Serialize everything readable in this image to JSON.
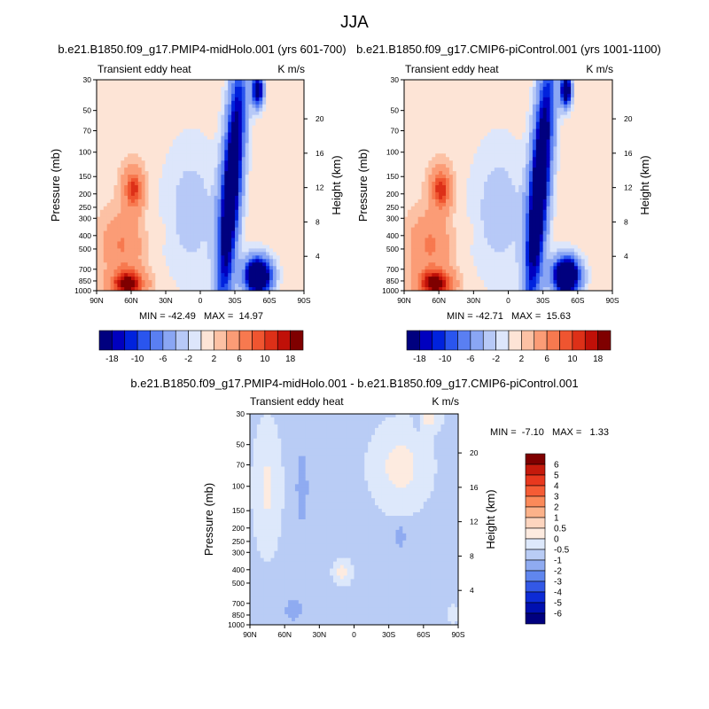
{
  "figure_title": "JJA",
  "colorbar_main": {
    "labels": [
      "-18",
      "-10",
      "-6",
      "-2",
      "2",
      "6",
      "10",
      "18"
    ],
    "colors": [
      "#00007f",
      "#0000bf",
      "#0022dd",
      "#2a55ee",
      "#5a7ff2",
      "#8aa6f4",
      "#b7c9f7",
      "#dde6fb",
      "#fde4d6",
      "#fcc1a4",
      "#fb9c76",
      "#f7794f",
      "#ef5530",
      "#dd3018",
      "#c01008",
      "#7f0000"
    ]
  },
  "colorbar_diff": {
    "labels": [
      "6",
      "5",
      "4",
      "3",
      "2",
      "1",
      "0.5",
      "0",
      "-0.5",
      "-1",
      "-2",
      "-3",
      "-4",
      "-5",
      "-6"
    ],
    "colors": [
      "#7f0000",
      "#c51a0c",
      "#e8381e",
      "#f55c35",
      "#fb8a5a",
      "#fcb28a",
      "#fdd5bf",
      "#fdebe0",
      "#dde8fb",
      "#b9ccf5",
      "#8fabf1",
      "#6086ee",
      "#3358e6",
      "#0d2bd6",
      "#0010b0",
      "#00007f"
    ]
  },
  "chart_data": [
    {
      "type": "heatmap",
      "title": "b.e21.B1850.f09_g17.PMIP4-midHolo.001 (yrs 601-700)",
      "subtitle": "Transient eddy heat",
      "units": "K m/s",
      "ylabel": "Pressure (mb)",
      "ylabel_right": "Height (km)",
      "stats": "MIN = -42.49   MAX =  14.97",
      "x_ticks": [
        "90N",
        "60N",
        "30N",
        "0",
        "30S",
        "60S",
        "90S"
      ],
      "y_ticks": [
        "30",
        "50",
        "70",
        "100",
        "150",
        "200",
        "250",
        "300",
        "400",
        "500",
        "700",
        "850",
        "1000"
      ],
      "height_ticks": [
        "20",
        "16",
        "12",
        "8",
        "4"
      ],
      "min": -42.49,
      "max": 14.97,
      "scale": 1.0
    },
    {
      "type": "heatmap",
      "title": "b.e21.B1850.f09_g17.CMIP6-piControl.001 (yrs 1001-1100)",
      "subtitle": "Transient eddy heat",
      "units": "K m/s",
      "ylabel": "Pressure (mb)",
      "ylabel_right": "Height (km)",
      "stats": "MIN = -42.71   MAX =  15.63",
      "x_ticks": [
        "90N",
        "60N",
        "30N",
        "0",
        "30S",
        "60S",
        "90S"
      ],
      "y_ticks": [
        "30",
        "50",
        "70",
        "100",
        "150",
        "200",
        "250",
        "300",
        "400",
        "500",
        "700",
        "850",
        "1000"
      ],
      "height_ticks": [
        "20",
        "16",
        "12",
        "8",
        "4"
      ],
      "min": -42.71,
      "max": 15.63,
      "scale": 1.04
    },
    {
      "type": "heatmap",
      "title": "b.e21.B1850.f09_g17.PMIP4-midHolo.001 - b.e21.B1850.f09_g17.CMIP6-piControl.001",
      "subtitle": "Transient eddy heat",
      "units": "K m/s",
      "ylabel": "Pressure (mb)",
      "ylabel_right": "Height (km)",
      "stats": "MIN =  -7.10   MAX =   1.33",
      "x_ticks": [
        "90N",
        "60N",
        "30N",
        "0",
        "30S",
        "60S",
        "90S"
      ],
      "y_ticks": [
        "30",
        "50",
        "70",
        "100",
        "150",
        "200",
        "250",
        "300",
        "400",
        "500",
        "700",
        "850",
        "1000"
      ],
      "height_ticks": [
        "20",
        "16",
        "12",
        "8",
        "4"
      ],
      "min": -7.1,
      "max": 1.33
    }
  ]
}
